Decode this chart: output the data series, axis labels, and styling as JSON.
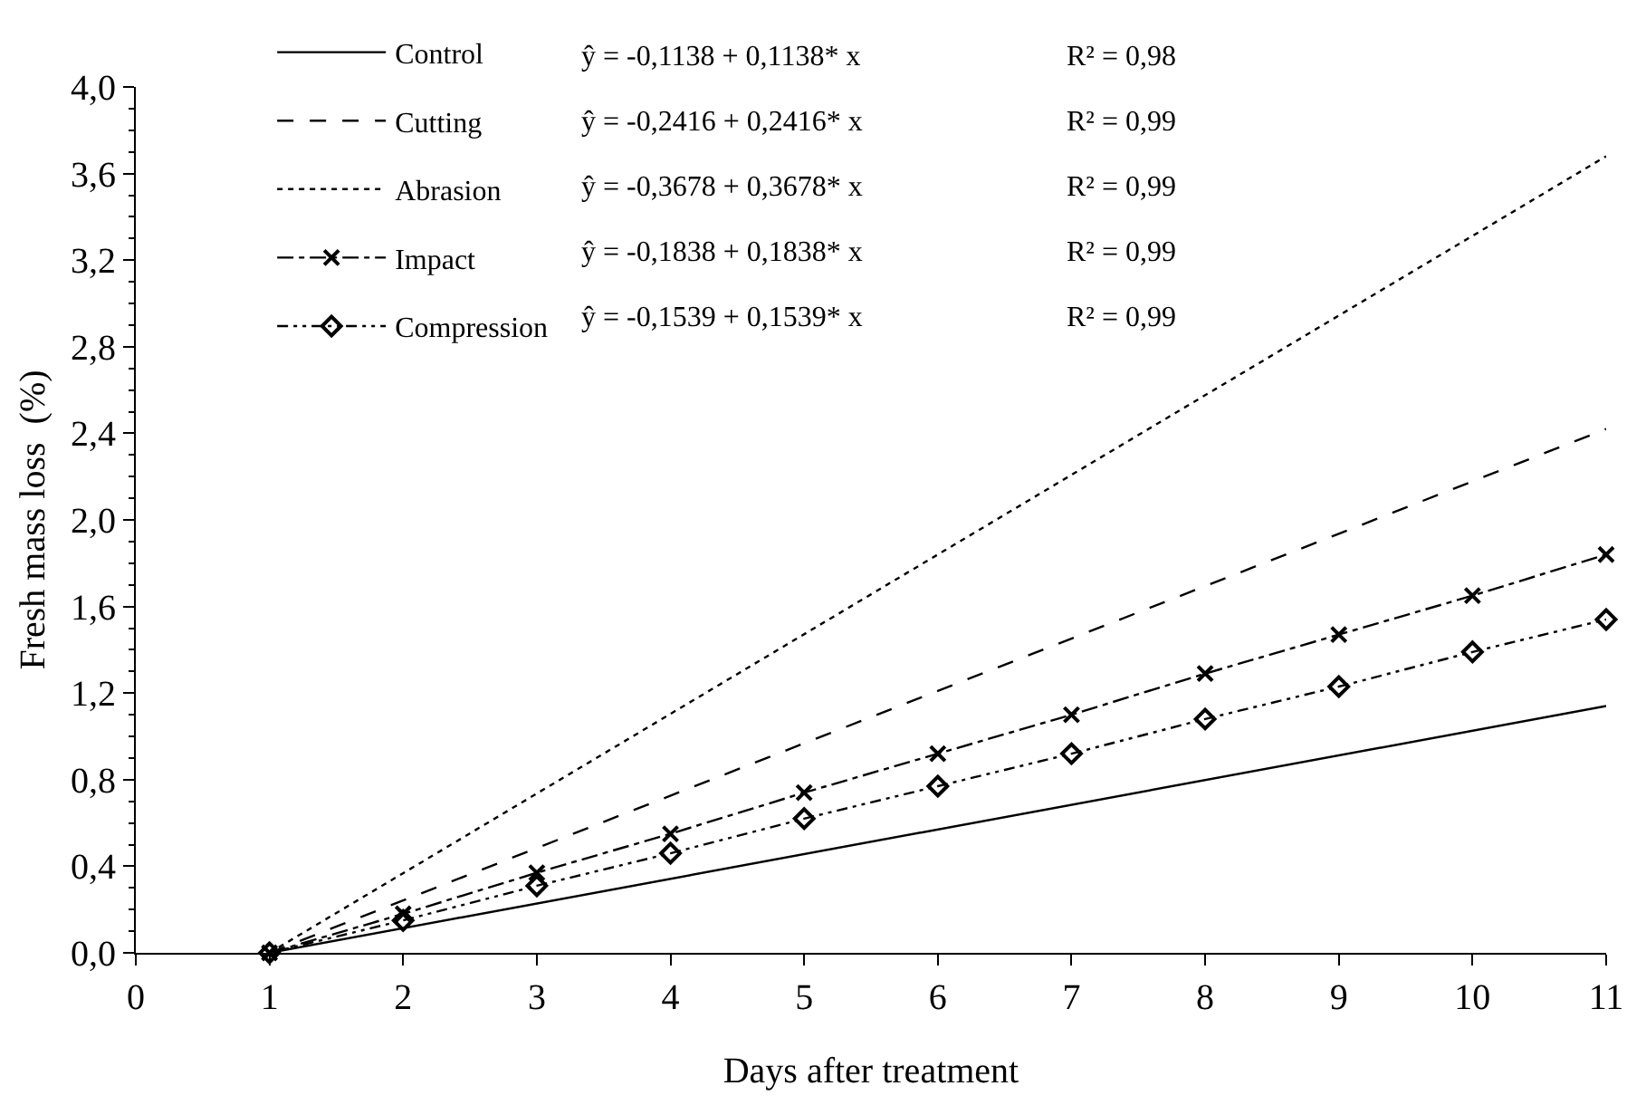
{
  "chart_data": {
    "type": "line",
    "xlabel": "Days after treatment",
    "ylabel": "Fresh mass loss  (%)",
    "series": [
      {
        "name": "Control",
        "color": "#000000",
        "x": [
          1,
          11
        ],
        "values": [
          0,
          1.14
        ],
        "line_style": "solid"
      },
      {
        "name": "Cutting",
        "color": "#000000",
        "x": [
          1,
          11
        ],
        "values": [
          0,
          2.42
        ],
        "line_style": "dashed"
      },
      {
        "name": "Abrasion",
        "color": "#000000",
        "x": [
          1,
          11
        ],
        "values": [
          0,
          3.68
        ],
        "line_style": "dotted"
      },
      {
        "name": "Impact",
        "color": "#000000",
        "x": [
          1,
          2,
          3,
          4,
          5,
          6,
          7,
          8,
          9,
          10,
          11
        ],
        "values": [
          0,
          0.18,
          0.37,
          0.55,
          0.74,
          0.92,
          1.1,
          1.29,
          1.47,
          1.65,
          1.84
        ],
        "line_style": "dashdot",
        "marker": "cross"
      },
      {
        "name": "Compression",
        "color": "#000000",
        "x": [
          1,
          2,
          3,
          4,
          5,
          6,
          7,
          8,
          9,
          10,
          11
        ],
        "values": [
          0,
          0.15,
          0.31,
          0.46,
          0.62,
          0.77,
          0.92,
          1.08,
          1.23,
          1.39,
          1.54
        ],
        "line_style": "dashdotdot",
        "marker": "diamond"
      }
    ],
    "annotations": [
      "ŷ = -0,1138 + 0,1138* x",
      "R² = 0,98",
      "ŷ = -0,2416 + 0,2416* x",
      "R² = 0,99",
      "ŷ = -0,3678 + 0,3678* x",
      "R² = 0,99",
      "ŷ = -0,1838 + 0,1838* x",
      "R² = 0,99",
      "ŷ = -0,1539 + 0,1539* x",
      "R² = 0,99"
    ],
    "xlim": [
      0,
      11
    ],
    "xticks": [
      0,
      1,
      2,
      3,
      4,
      5,
      6,
      7,
      8,
      9,
      10,
      11
    ],
    "ylim": [
      0,
      4
    ],
    "yticks": [
      {
        "value": 0,
        "label": "0,0"
      },
      {
        "value": 0.4,
        "label": "0,4"
      },
      {
        "value": 0.8,
        "label": "0,8"
      },
      {
        "value": 1.2,
        "label": "1,2"
      },
      {
        "value": 1.6,
        "label": "1,6"
      },
      {
        "value": 2.0,
        "label": "2,0"
      },
      {
        "value": 2.4,
        "label": "2,4"
      },
      {
        "value": 2.8,
        "label": "2,8"
      },
      {
        "value": 3.2,
        "label": "3,2"
      },
      {
        "value": 3.6,
        "label": "3,6"
      },
      {
        "value": 4.0,
        "label": "4,0"
      }
    ],
    "legend": "top"
  }
}
